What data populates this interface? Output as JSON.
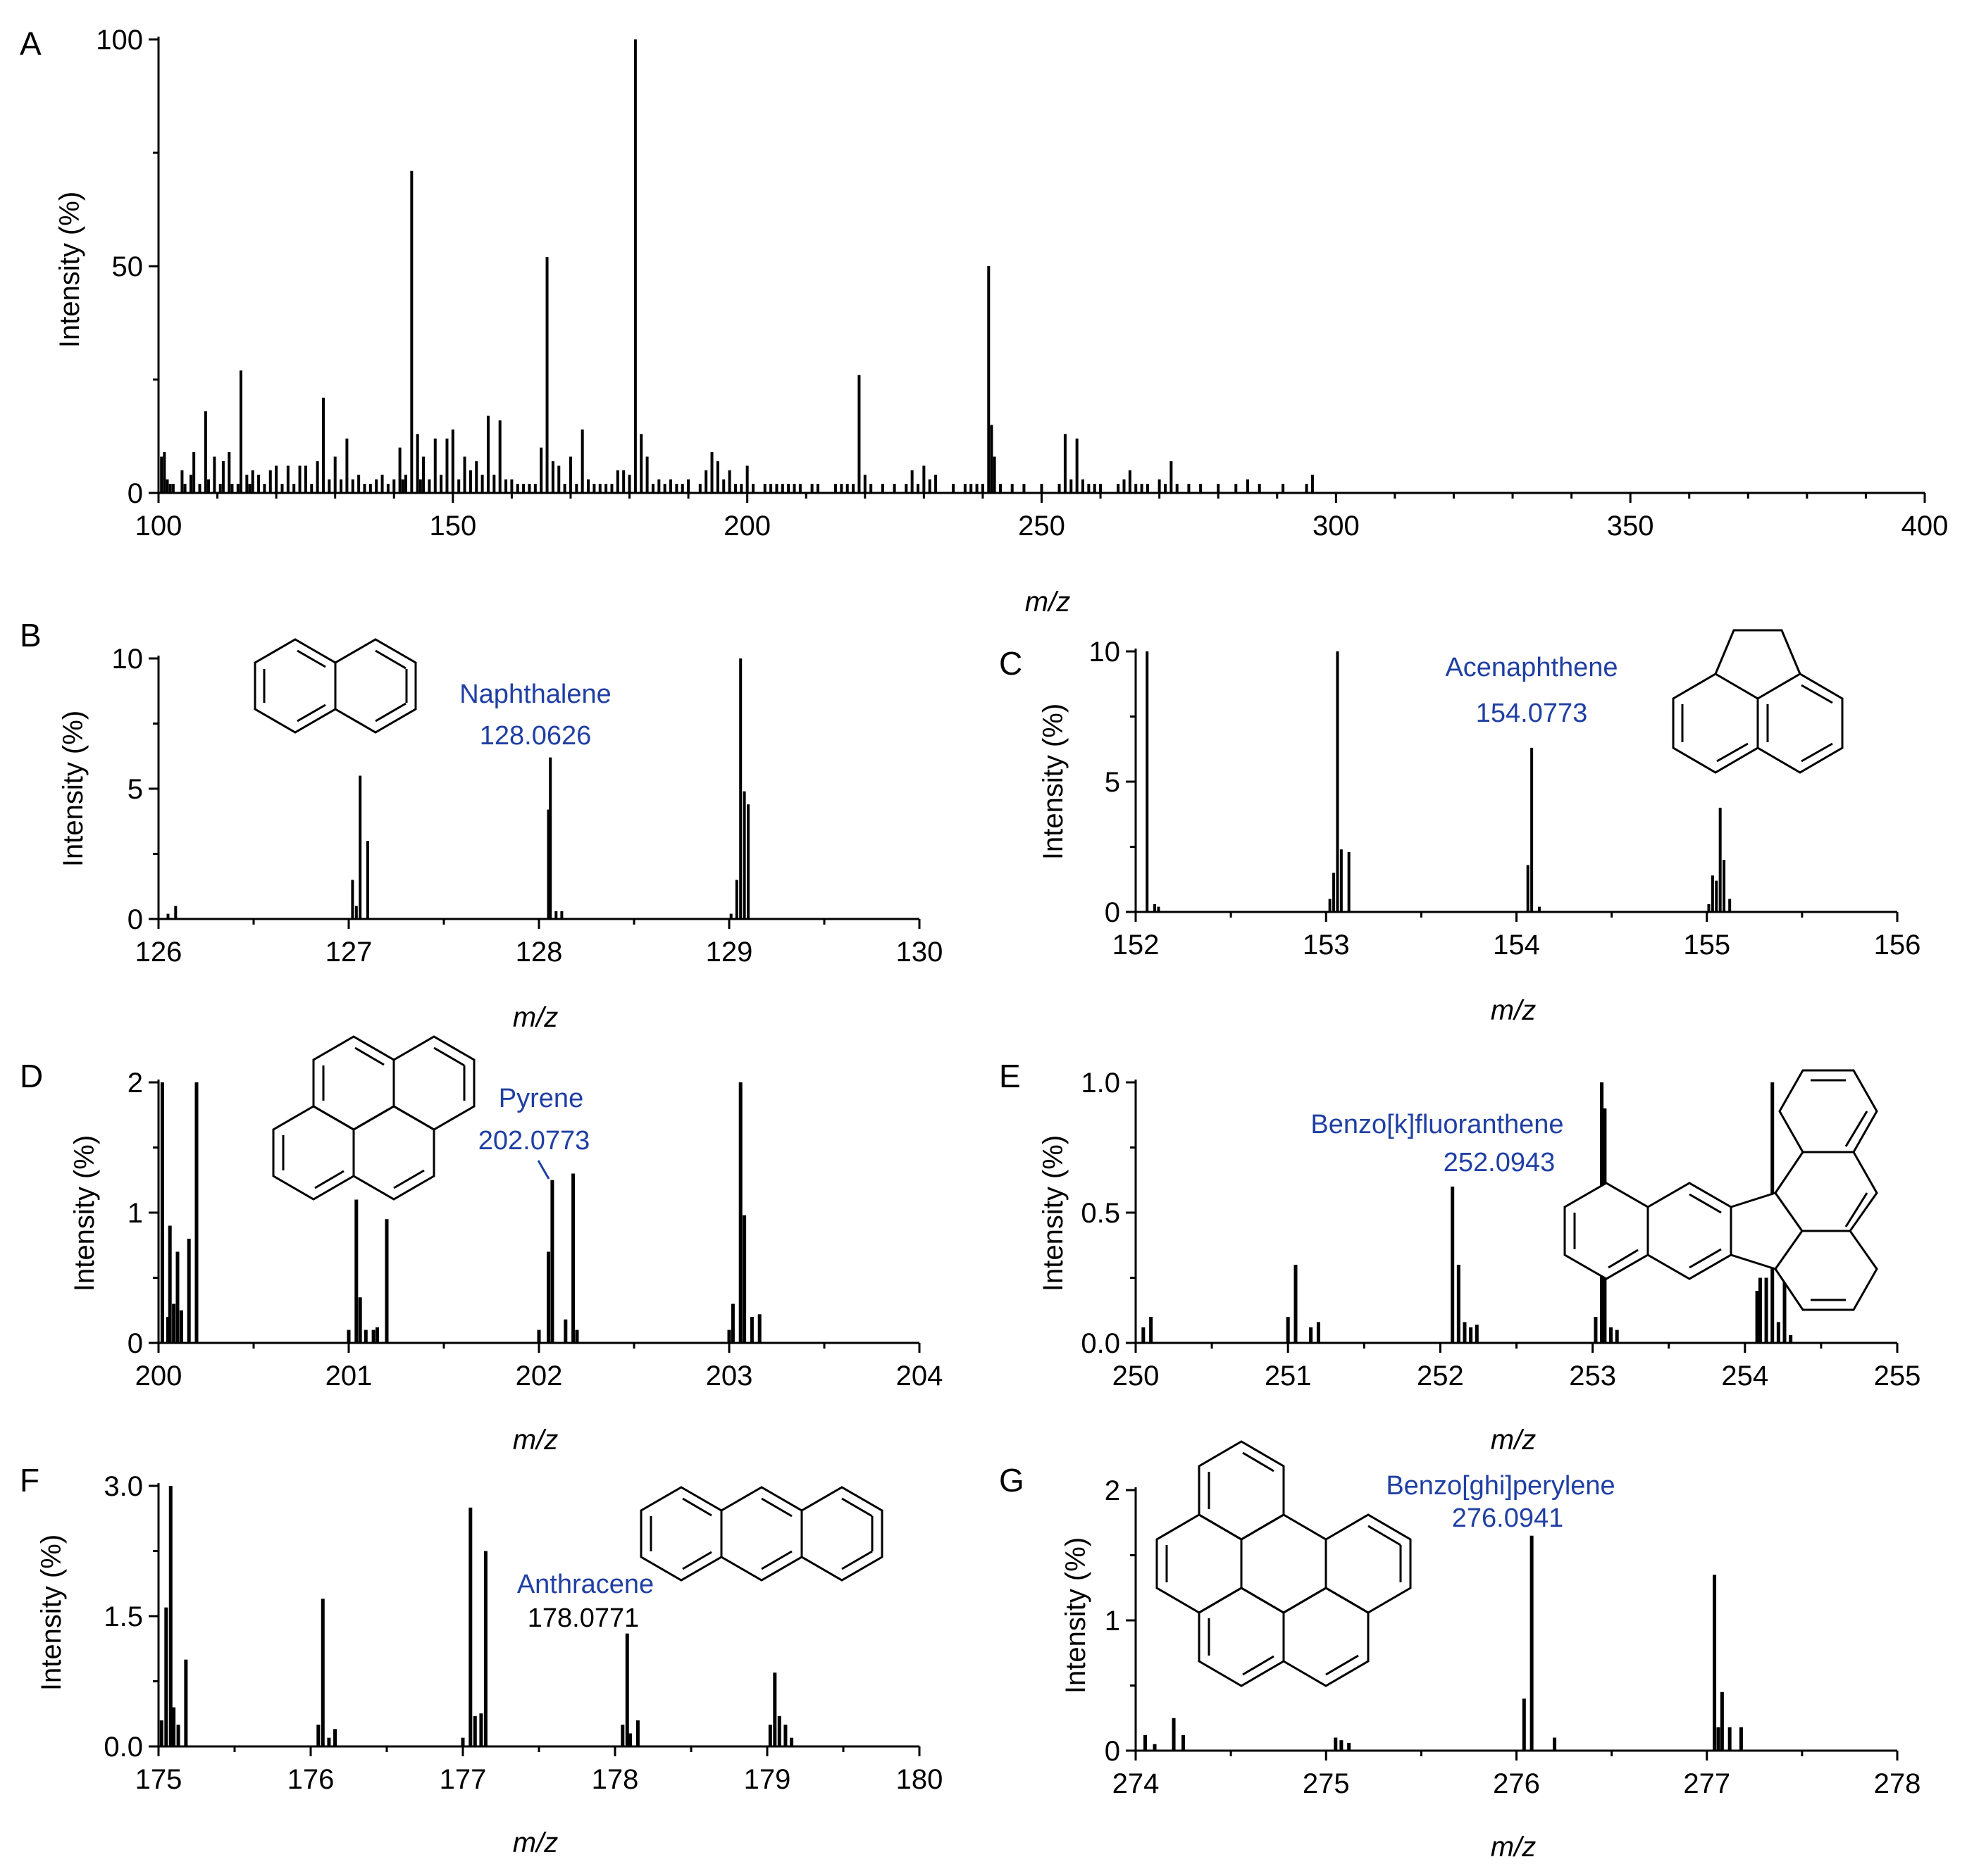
{
  "colors": {
    "ink": "#000000",
    "annotation": "#1f3fa3",
    "background": "#ffffff"
  },
  "chart_data": [
    {
      "id": "A",
      "type": "bar",
      "panel_label": "A",
      "xlabel": "m/z",
      "ylabel": "Intensity (%)",
      "xlim": [
        100,
        400
      ],
      "ylim": [
        0,
        100
      ],
      "xticks": [
        100,
        150,
        200,
        250,
        300,
        350,
        400
      ],
      "yticks": [
        0,
        50,
        100
      ],
      "annotations": [],
      "molecule": null,
      "peaks": [
        [
          100.5,
          8
        ],
        [
          101,
          9
        ],
        [
          101.5,
          3
        ],
        [
          102,
          2
        ],
        [
          102.5,
          2
        ],
        [
          104,
          5
        ],
        [
          104.5,
          2
        ],
        [
          105.5,
          4
        ],
        [
          106,
          9
        ],
        [
          107,
          2
        ],
        [
          108,
          18
        ],
        [
          108.5,
          3
        ],
        [
          109.5,
          8
        ],
        [
          110.5,
          2
        ],
        [
          111,
          7
        ],
        [
          112,
          9
        ],
        [
          112.5,
          2
        ],
        [
          113.5,
          2
        ],
        [
          114,
          27
        ],
        [
          115,
          4
        ],
        [
          115.5,
          2
        ],
        [
          116,
          5
        ],
        [
          117,
          4
        ],
        [
          118,
          2
        ],
        [
          119,
          5
        ],
        [
          120,
          6
        ],
        [
          121,
          2
        ],
        [
          122,
          6
        ],
        [
          123,
          2
        ],
        [
          124,
          6
        ],
        [
          125,
          6
        ],
        [
          126,
          2
        ],
        [
          127,
          7
        ],
        [
          128,
          21
        ],
        [
          129,
          3
        ],
        [
          130,
          8
        ],
        [
          131,
          3
        ],
        [
          132,
          12
        ],
        [
          133,
          3
        ],
        [
          134,
          4
        ],
        [
          135,
          2
        ],
        [
          136,
          2
        ],
        [
          137,
          3
        ],
        [
          138,
          4
        ],
        [
          139,
          2
        ],
        [
          140,
          3
        ],
        [
          141,
          10
        ],
        [
          141.5,
          3
        ],
        [
          142,
          4
        ],
        [
          143,
          71
        ],
        [
          144,
          13
        ],
        [
          144.5,
          3
        ],
        [
          145,
          8
        ],
        [
          146,
          3
        ],
        [
          147,
          12
        ],
        [
          148,
          4
        ],
        [
          149,
          12
        ],
        [
          150,
          14
        ],
        [
          151,
          3
        ],
        [
          152,
          8
        ],
        [
          153,
          5
        ],
        [
          154,
          7
        ],
        [
          155,
          4
        ],
        [
          156,
          17
        ],
        [
          157,
          4
        ],
        [
          158,
          16
        ],
        [
          159,
          3
        ],
        [
          160,
          3
        ],
        [
          161,
          2
        ],
        [
          162,
          2
        ],
        [
          163,
          2
        ],
        [
          164,
          2
        ],
        [
          165,
          10
        ],
        [
          166,
          52
        ],
        [
          167,
          7
        ],
        [
          168,
          6
        ],
        [
          169,
          2
        ],
        [
          170,
          8
        ],
        [
          171,
          2
        ],
        [
          172,
          14
        ],
        [
          173,
          3
        ],
        [
          174,
          2
        ],
        [
          175,
          2
        ],
        [
          176,
          2
        ],
        [
          177,
          2
        ],
        [
          178,
          5
        ],
        [
          179,
          5
        ],
        [
          180,
          4
        ],
        [
          181,
          100
        ],
        [
          182,
          13
        ],
        [
          183,
          8
        ],
        [
          184,
          2
        ],
        [
          185,
          3
        ],
        [
          186,
          2
        ],
        [
          187,
          3
        ],
        [
          188,
          2
        ],
        [
          189,
          2
        ],
        [
          190,
          3
        ],
        [
          192,
          2
        ],
        [
          193,
          5
        ],
        [
          194,
          9
        ],
        [
          195,
          7
        ],
        [
          196,
          3
        ],
        [
          197,
          5
        ],
        [
          198,
          2
        ],
        [
          199,
          2
        ],
        [
          200,
          6
        ],
        [
          201,
          2
        ],
        [
          203,
          2
        ],
        [
          204,
          2
        ],
        [
          205,
          2
        ],
        [
          206,
          2
        ],
        [
          207,
          2
        ],
        [
          208,
          2
        ],
        [
          209,
          2
        ],
        [
          211,
          2
        ],
        [
          212,
          2
        ],
        [
          215,
          2
        ],
        [
          216,
          2
        ],
        [
          217,
          2
        ],
        [
          218,
          2
        ],
        [
          219,
          26
        ],
        [
          220,
          4
        ],
        [
          221,
          2
        ],
        [
          223,
          2
        ],
        [
          225,
          2
        ],
        [
          227,
          2
        ],
        [
          228,
          5
        ],
        [
          229,
          2
        ],
        [
          230,
          6
        ],
        [
          231,
          3
        ],
        [
          232,
          4
        ],
        [
          235,
          2
        ],
        [
          237,
          2
        ],
        [
          238,
          2
        ],
        [
          239,
          2
        ],
        [
          240,
          2
        ],
        [
          241,
          50
        ],
        [
          241.5,
          15
        ],
        [
          242,
          8
        ],
        [
          243,
          2
        ],
        [
          245,
          2
        ],
        [
          247,
          2
        ],
        [
          250,
          2
        ],
        [
          253,
          2
        ],
        [
          254,
          13
        ],
        [
          255,
          3
        ],
        [
          256,
          12
        ],
        [
          257,
          3
        ],
        [
          258,
          2
        ],
        [
          259,
          2
        ],
        [
          260,
          2
        ],
        [
          263,
          2
        ],
        [
          264,
          3
        ],
        [
          265,
          5
        ],
        [
          266,
          2
        ],
        [
          267,
          2
        ],
        [
          268,
          2
        ],
        [
          270,
          3
        ],
        [
          271,
          2
        ],
        [
          272,
          7
        ],
        [
          273,
          2
        ],
        [
          275,
          2
        ],
        [
          277,
          2
        ],
        [
          280,
          2
        ],
        [
          283,
          2
        ],
        [
          285,
          3
        ],
        [
          287,
          2
        ],
        [
          291,
          2
        ],
        [
          295,
          2
        ],
        [
          296,
          4
        ]
      ]
    },
    {
      "id": "B",
      "type": "bar",
      "panel_label": "B",
      "xlabel": "m/z",
      "ylabel": "Intensity (%)",
      "xlim": [
        126,
        130
      ],
      "ylim": [
        0,
        10
      ],
      "xticks": [
        126,
        127,
        128,
        129,
        130
      ],
      "yticks": [
        0,
        5,
        10
      ],
      "molecule": "naphthalene",
      "annotations": [
        {
          "name": "Naphthalene",
          "mass": "128.0626"
        }
      ],
      "peaks": [
        [
          126.05,
          0.2
        ],
        [
          126.09,
          0.5
        ],
        [
          127.02,
          1.5
        ],
        [
          127.04,
          0.5
        ],
        [
          127.06,
          5.5
        ],
        [
          127.1,
          3.0
        ],
        [
          128.05,
          4.2
        ],
        [
          128.06,
          6.2
        ],
        [
          128.09,
          0.3
        ],
        [
          128.12,
          0.3
        ],
        [
          129.01,
          0.2
        ],
        [
          129.04,
          1.5
        ],
        [
          129.06,
          10.0
        ],
        [
          129.08,
          4.9
        ],
        [
          129.1,
          4.4
        ]
      ]
    },
    {
      "id": "C",
      "type": "bar",
      "panel_label": "C",
      "xlabel": "m/z",
      "ylabel": "Intensity (%)",
      "xlim": [
        152,
        156
      ],
      "ylim": [
        0,
        10
      ],
      "xticks": [
        152,
        153,
        154,
        155,
        156
      ],
      "yticks": [
        0,
        5,
        10
      ],
      "molecule": "acenaphthene",
      "annotations": [
        {
          "name": "Acenaphthene",
          "mass": "154.0773"
        }
      ],
      "peaks": [
        [
          152.06,
          10.0
        ],
        [
          152.1,
          0.3
        ],
        [
          152.12,
          0.2
        ],
        [
          153.02,
          0.5
        ],
        [
          153.04,
          1.5
        ],
        [
          153.06,
          10.0
        ],
        [
          153.08,
          2.4
        ],
        [
          153.12,
          2.3
        ],
        [
          154.06,
          1.8
        ],
        [
          154.08,
          6.3
        ],
        [
          154.12,
          0.2
        ],
        [
          155.01,
          0.3
        ],
        [
          155.03,
          1.4
        ],
        [
          155.05,
          1.2
        ],
        [
          155.07,
          4.0
        ],
        [
          155.09,
          2.0
        ],
        [
          155.12,
          0.5
        ]
      ]
    },
    {
      "id": "D",
      "type": "bar",
      "panel_label": "D",
      "xlabel": "m/z",
      "ylabel": "Intensity (%)",
      "xlim": [
        200,
        204
      ],
      "ylim": [
        0,
        2
      ],
      "xticks": [
        200,
        201,
        202,
        203,
        204
      ],
      "yticks": [
        0,
        1,
        2
      ],
      "molecule": "pyrene",
      "annotations": [
        {
          "name": "Pyrene",
          "mass": "202.0773"
        }
      ],
      "peaks": [
        [
          200.02,
          2.0
        ],
        [
          200.05,
          0.2
        ],
        [
          200.06,
          0.9
        ],
        [
          200.08,
          0.3
        ],
        [
          200.1,
          0.7
        ],
        [
          200.12,
          0.25
        ],
        [
          200.16,
          0.8
        ],
        [
          200.2,
          2.0
        ],
        [
          201.0,
          0.1
        ],
        [
          201.04,
          1.1
        ],
        [
          201.06,
          0.35
        ],
        [
          201.09,
          0.1
        ],
        [
          201.13,
          0.1
        ],
        [
          201.15,
          0.12
        ],
        [
          201.2,
          0.95
        ],
        [
          202.0,
          0.1
        ],
        [
          202.05,
          0.7
        ],
        [
          202.07,
          1.25
        ],
        [
          202.14,
          0.18
        ],
        [
          202.18,
          1.3
        ],
        [
          202.2,
          0.1
        ],
        [
          203.0,
          0.1
        ],
        [
          203.02,
          0.3
        ],
        [
          203.06,
          2.0
        ],
        [
          203.08,
          0.98
        ],
        [
          203.12,
          0.2
        ],
        [
          203.16,
          0.22
        ]
      ]
    },
    {
      "id": "E",
      "type": "bar",
      "panel_label": "E",
      "xlabel": "m/z",
      "ylabel": "Intensity (%)",
      "xlim": [
        250,
        255
      ],
      "ylim": [
        0,
        1.0
      ],
      "xticks": [
        250,
        251,
        252,
        253,
        254,
        255
      ],
      "yticks": [
        0.0,
        0.5,
        1.0
      ],
      "molecule": "benzo_k_fluoranthene",
      "annotations": [
        {
          "name": "Benzo[k]fluoranthene",
          "mass": "252.0943"
        }
      ],
      "peaks": [
        [
          250.05,
          0.06
        ],
        [
          250.1,
          0.1
        ],
        [
          251.0,
          0.1
        ],
        [
          251.05,
          0.3
        ],
        [
          251.15,
          0.06
        ],
        [
          251.2,
          0.08
        ],
        [
          252.08,
          0.6
        ],
        [
          252.12,
          0.3
        ],
        [
          252.16,
          0.08
        ],
        [
          252.2,
          0.06
        ],
        [
          252.24,
          0.07
        ],
        [
          253.02,
          0.1
        ],
        [
          253.06,
          1.0
        ],
        [
          253.08,
          0.9
        ],
        [
          253.12,
          0.06
        ],
        [
          253.16,
          0.05
        ],
        [
          254.08,
          0.2
        ],
        [
          254.1,
          0.25
        ],
        [
          254.14,
          0.25
        ],
        [
          254.18,
          1.0
        ],
        [
          254.22,
          0.08
        ],
        [
          254.26,
          0.25
        ],
        [
          254.3,
          0.03
        ]
      ]
    },
    {
      "id": "F",
      "type": "bar",
      "panel_label": "F",
      "xlabel": "m/z",
      "ylabel": "Intensity (%)",
      "xlim": [
        175,
        180
      ],
      "ylim": [
        0,
        3.0
      ],
      "xticks": [
        175,
        176,
        177,
        178,
        179,
        180
      ],
      "yticks": [
        0.0,
        1.5,
        3.0
      ],
      "molecule": "anthracene",
      "annotations": [
        {
          "name": "Anthracene",
          "mass": "178.0771"
        }
      ],
      "peaks": [
        [
          175.02,
          0.3
        ],
        [
          175.05,
          1.6
        ],
        [
          175.08,
          3.0
        ],
        [
          175.1,
          0.45
        ],
        [
          175.13,
          0.25
        ],
        [
          175.18,
          1.0
        ],
        [
          176.05,
          0.25
        ],
        [
          176.08,
          1.7
        ],
        [
          176.12,
          0.1
        ],
        [
          176.16,
          0.2
        ],
        [
          177.0,
          0.1
        ],
        [
          177.05,
          2.75
        ],
        [
          177.08,
          0.35
        ],
        [
          177.12,
          0.38
        ],
        [
          177.15,
          2.25
        ],
        [
          178.05,
          0.25
        ],
        [
          178.08,
          1.3
        ],
        [
          178.1,
          0.15
        ],
        [
          178.15,
          0.3
        ],
        [
          179.02,
          0.25
        ],
        [
          179.05,
          0.85
        ],
        [
          179.08,
          0.35
        ],
        [
          179.12,
          0.25
        ],
        [
          179.16,
          0.1
        ]
      ]
    },
    {
      "id": "G",
      "type": "bar",
      "panel_label": "G",
      "xlabel": "m/z",
      "ylabel": "Intensity (%)",
      "xlim": [
        274,
        278
      ],
      "ylim": [
        0,
        2
      ],
      "xticks": [
        274,
        275,
        276,
        277,
        278
      ],
      "yticks": [
        0,
        1,
        2
      ],
      "molecule": "benzo_ghi_perylene",
      "annotations": [
        {
          "name": "Benzo[ghi]perylene",
          "mass": "276.0941"
        }
      ],
      "peaks": [
        [
          274.05,
          0.12
        ],
        [
          274.1,
          0.05
        ],
        [
          274.2,
          0.25
        ],
        [
          274.25,
          0.12
        ],
        [
          275.05,
          0.1
        ],
        [
          275.08,
          0.08
        ],
        [
          275.12,
          0.06
        ],
        [
          276.04,
          0.4
        ],
        [
          276.08,
          1.65
        ],
        [
          276.2,
          0.1
        ],
        [
          277.04,
          1.35
        ],
        [
          277.06,
          0.18
        ],
        [
          277.08,
          0.45
        ],
        [
          277.12,
          0.18
        ],
        [
          277.18,
          0.18
        ]
      ]
    }
  ]
}
